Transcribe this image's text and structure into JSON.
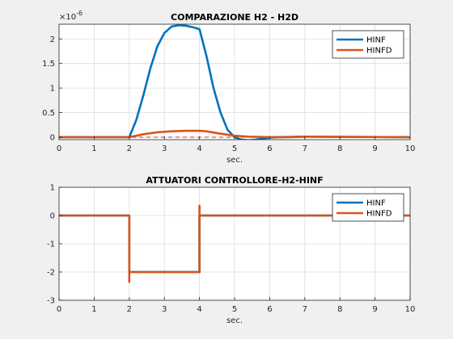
{
  "chart_data": [
    {
      "type": "line",
      "title": "COMPARAZIONE H2 - H2D",
      "xlabel": "sec.",
      "ylabel": "",
      "exponent_label": "×10",
      "exponent_power": "-6",
      "xlim": [
        0,
        10
      ],
      "ylim": [
        -0.05,
        2.3
      ],
      "xticks": [
        0,
        1,
        2,
        3,
        4,
        5,
        6,
        7,
        8,
        9,
        10
      ],
      "yticks": [
        0,
        0.5,
        1,
        1.5,
        2
      ],
      "ytick_labels": [
        "0",
        "0.5",
        "1",
        "1.5",
        "2"
      ],
      "grid": true,
      "legend_position": "top-right",
      "reference_line": {
        "y": 0,
        "style": "dashed",
        "color": "#d62728"
      },
      "series": [
        {
          "name": "HINF",
          "color": "#0072BD",
          "x": [
            0,
            2.0,
            2.2,
            2.4,
            2.6,
            2.8,
            3.0,
            3.2,
            3.4,
            3.6,
            3.8,
            4.0,
            4.2,
            4.4,
            4.6,
            4.8,
            5.0,
            5.2,
            5.4,
            5.6,
            5.8,
            6.0,
            6.2,
            7.0,
            10
          ],
          "y": [
            0,
            0,
            0.35,
            0.85,
            1.4,
            1.85,
            2.12,
            2.25,
            2.28,
            2.27,
            2.24,
            2.2,
            1.65,
            1.0,
            0.5,
            0.15,
            0.0,
            -0.05,
            -0.06,
            -0.05,
            -0.03,
            -0.01,
            0.0,
            0.01,
            0.0
          ]
        },
        {
          "name": "HINFD",
          "color": "#D95319",
          "x": [
            0,
            2.0,
            2.4,
            2.8,
            3.2,
            3.6,
            4.0,
            4.2,
            4.6,
            5.0,
            5.4,
            6.0,
            6.5,
            7.0,
            10
          ],
          "y": [
            0,
            0,
            0.06,
            0.1,
            0.12,
            0.13,
            0.13,
            0.12,
            0.07,
            0.03,
            0.01,
            0.0,
            0.0,
            0.01,
            0.0
          ]
        }
      ]
    },
    {
      "type": "line",
      "title": "ATTUATORI CONTROLLORE-H2-HINF",
      "xlabel": "sec.",
      "ylabel": "",
      "xlim": [
        0,
        10
      ],
      "ylim": [
        -3,
        1
      ],
      "xticks": [
        0,
        1,
        2,
        3,
        4,
        5,
        6,
        7,
        8,
        9,
        10
      ],
      "yticks": [
        -3,
        -2,
        -1,
        0,
        1
      ],
      "ytick_labels": [
        "-3",
        "-2",
        "-1",
        "0",
        "1"
      ],
      "grid": true,
      "legend_position": "top-right",
      "series": [
        {
          "name": "HINF",
          "color": "#0072BD",
          "x": [
            0,
            2,
            2,
            4,
            4,
            10
          ],
          "y": [
            0,
            0,
            -2,
            -2,
            0,
            0
          ]
        },
        {
          "name": "HINFD",
          "color": "#D95319",
          "x": [
            0,
            2,
            2,
            2,
            4,
            4,
            4,
            4.05,
            10
          ],
          "y": [
            0,
            0,
            -2.35,
            -2,
            -2,
            0.35,
            0,
            0,
            0
          ]
        }
      ]
    }
  ]
}
